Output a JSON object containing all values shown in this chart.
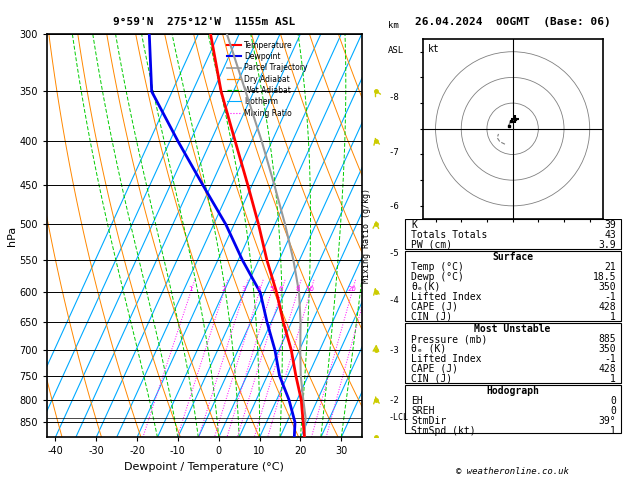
{
  "title_left": "9°59'N  275°12'W  1155m ASL",
  "title_right": "26.04.2024  00GMT  (Base: 06)",
  "xlabel": "Dewpoint / Temperature (°C)",
  "ylabel_left": "hPa",
  "pressure_levels": [
    300,
    350,
    400,
    450,
    500,
    550,
    600,
    650,
    700,
    750,
    800,
    850
  ],
  "p_min": 300,
  "p_max": 885,
  "t_min": -42,
  "t_max": 35,
  "temp_profile": {
    "pressure": [
      885,
      850,
      800,
      750,
      700,
      650,
      600,
      550,
      500,
      450,
      400,
      350,
      300
    ],
    "temperature": [
      21,
      19,
      16,
      12,
      8,
      3,
      -2,
      -8,
      -14,
      -21,
      -29,
      -38,
      -47
    ]
  },
  "dewp_profile": {
    "pressure": [
      885,
      850,
      800,
      750,
      700,
      650,
      600,
      550,
      500,
      450,
      400,
      350,
      300
    ],
    "dewpoint": [
      18.5,
      17,
      13,
      8,
      4,
      -1,
      -6,
      -14,
      -22,
      -32,
      -43,
      -55,
      -62
    ]
  },
  "parcel_profile": {
    "pressure": [
      885,
      850,
      840,
      800,
      750,
      700,
      650,
      600,
      550,
      500,
      450,
      400,
      350,
      300
    ],
    "temperature": [
      21,
      19.5,
      19.1,
      16.5,
      13.2,
      10.2,
      7.2,
      3.5,
      -1.5,
      -7.5,
      -14.5,
      -22.5,
      -32.0,
      -43.0
    ]
  },
  "lcl_pressure": 840,
  "mixing_ratio_values": [
    1,
    2,
    3,
    4,
    5,
    6,
    8,
    10,
    20,
    25
  ],
  "km_labels": [
    2,
    3,
    4,
    5,
    6,
    7,
    8
  ],
  "km_pressures": [
    802,
    701,
    613,
    541,
    476,
    412,
    356
  ],
  "wind_profile": {
    "pressure": [
      885,
      800,
      700,
      600,
      500,
      400,
      350
    ],
    "u": [
      0.3,
      -0.15,
      0.1,
      -0.2,
      0.05,
      -0.15,
      -0.25
    ],
    "v": [
      -0.4,
      0.25,
      0.35,
      0.2,
      0.25,
      0.15,
      0.1
    ]
  },
  "info": {
    "K": 39,
    "Totals_Totals": 43,
    "PW_cm": "3.9",
    "Surface_Temp": 21,
    "Surface_Dewp": "18.5",
    "theta_e": 350,
    "Lifted_Index": -1,
    "CAPE": 428,
    "CIN": 1,
    "MU_Pressure": 885,
    "MU_theta_e": 350,
    "MU_Lifted_Index": -1,
    "MU_CAPE": 428,
    "MU_CIN": 1,
    "EH": 0,
    "SREH": 0,
    "StmDir": "39",
    "StmSpd": 1
  },
  "colors": {
    "temperature": "#FF0000",
    "dewpoint": "#0000EE",
    "parcel": "#999999",
    "dry_adiabat": "#FF8800",
    "wet_adiabat": "#00CC00",
    "isotherm": "#00AAFF",
    "mixing_ratio": "#FF00FF",
    "background": "#FFFFFF",
    "wind_arrow": "#CCCC00"
  },
  "isotherm_temps": [
    -50,
    -45,
    -40,
    -35,
    -30,
    -25,
    -20,
    -15,
    -10,
    -5,
    0,
    5,
    10,
    15,
    20,
    25,
    30,
    35,
    40
  ],
  "dry_adiabat_thetas": [
    -30,
    -20,
    -10,
    0,
    10,
    20,
    30,
    40,
    50,
    60,
    70,
    80,
    90,
    100,
    110,
    120,
    130,
    140,
    150,
    160
  ],
  "wet_adiabat_T0s": [
    -15,
    -10,
    -5,
    0,
    5,
    10,
    15,
    20,
    25,
    30,
    35,
    40
  ]
}
